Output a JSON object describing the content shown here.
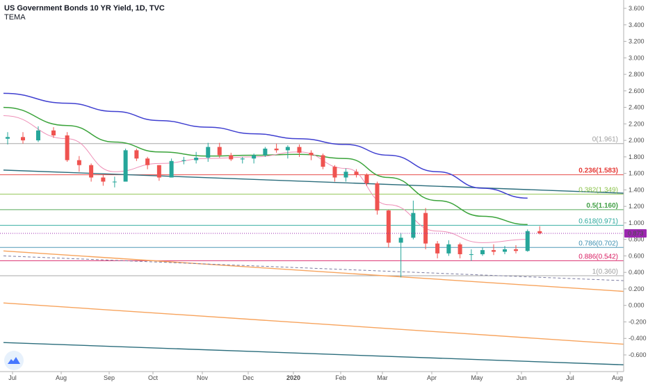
{
  "header": {
    "title": "US Government Bonds 10 YR Yield, 1D, TVC",
    "indicator": "TEMA"
  },
  "colors": {
    "candle_up": "#26a69a",
    "candle_down": "#ef5350",
    "price_badge": "#9c27b0",
    "axis_line": "#b0b0b0",
    "ema_slow": "#3f3fd0",
    "ema_mid": "#3aa33a",
    "ema_fast": "#ee8fb7",
    "trend_dark": "#2b6d7c",
    "trend_orange": "#f7a35c"
  },
  "chart_data": {
    "type": "candlestick",
    "symbol": "US Government Bonds 10 YR Yield",
    "interval": "1D",
    "source": "TVC",
    "indicator": "TEMA",
    "x_tick_labels": [
      "Jul",
      "Aug",
      "Sep",
      "Oct",
      "Nov",
      "Dec",
      "2020",
      "Feb",
      "Mar",
      "Apr",
      "May",
      "Jun",
      "Jul",
      "Aug"
    ],
    "y_tick_labels": [
      "3.600",
      "3.400",
      "3.200",
      "3.000",
      "2.800",
      "2.600",
      "2.400",
      "2.200",
      "2.000",
      "1.800",
      "1.600",
      "1.400",
      "1.200",
      "1.000",
      "0.800",
      "0.600",
      "0.400",
      "0.200",
      "0.000",
      "-0.200",
      "-0.400",
      "-0.600"
    ],
    "ylim": [
      -0.7,
      3.7
    ],
    "last_price": {
      "value": 0.873,
      "label": "0.873"
    },
    "fib_levels": [
      {
        "ratio": "0",
        "value": 1.961,
        "label": "0(1.961)",
        "color": "#9e9e9e",
        "bold": false
      },
      {
        "ratio": "0.236",
        "value": 1.583,
        "label": "0.236(1.583)",
        "color": "#e53935",
        "bold": true
      },
      {
        "ratio": "0.382",
        "value": 1.349,
        "label": "0.382(1.349)",
        "color": "#8bc34a",
        "bold": false
      },
      {
        "ratio": "0.5",
        "value": 1.16,
        "label": "0.5(1.160)",
        "color": "#43a047",
        "bold": true
      },
      {
        "ratio": "0.618",
        "value": 0.971,
        "label": "0.618(0.971)",
        "color": "#26a69a",
        "bold": false
      },
      {
        "ratio": "0.786",
        "value": 0.702,
        "label": "0.786(0.702)",
        "color": "#3d8fb0",
        "bold": false
      },
      {
        "ratio": "0.886",
        "value": 0.542,
        "label": "0.886(0.542)",
        "color": "#d81b60",
        "bold": false
      },
      {
        "ratio": "1",
        "value": 0.36,
        "label": "1(0.360)",
        "color": "#9e9e9e",
        "bold": false
      }
    ],
    "ohlc_weekly": [
      {
        "week": "Jul-1",
        "open": 2.02,
        "high": 2.1,
        "low": 1.95,
        "close": 2.04
      },
      {
        "week": "Jul-2",
        "open": 2.04,
        "high": 2.1,
        "low": 1.96,
        "close": 2.0
      },
      {
        "week": "Jul-3",
        "open": 2.0,
        "high": 2.17,
        "low": 1.98,
        "close": 2.12
      },
      {
        "week": "Jul-4",
        "open": 2.12,
        "high": 2.16,
        "low": 2.03,
        "close": 2.06
      },
      {
        "week": "Aug-1",
        "open": 2.06,
        "high": 2.1,
        "low": 1.74,
        "close": 1.76
      },
      {
        "week": "Aug-2",
        "open": 1.76,
        "high": 1.81,
        "low": 1.62,
        "close": 1.7
      },
      {
        "week": "Aug-3",
        "open": 1.7,
        "high": 1.72,
        "low": 1.5,
        "close": 1.55
      },
      {
        "week": "Aug-4",
        "open": 1.55,
        "high": 1.58,
        "low": 1.45,
        "close": 1.5
      },
      {
        "week": "Sep-1",
        "open": 1.5,
        "high": 1.56,
        "low": 1.43,
        "close": 1.5
      },
      {
        "week": "Sep-2",
        "open": 1.5,
        "high": 1.9,
        "low": 1.5,
        "close": 1.88
      },
      {
        "week": "Sep-3",
        "open": 1.88,
        "high": 1.9,
        "low": 1.75,
        "close": 1.78
      },
      {
        "week": "Sep-4",
        "open": 1.78,
        "high": 1.8,
        "low": 1.65,
        "close": 1.7
      },
      {
        "week": "Oct-1",
        "open": 1.7,
        "high": 1.7,
        "low": 1.51,
        "close": 1.55
      },
      {
        "week": "Oct-2",
        "open": 1.55,
        "high": 1.78,
        "low": 1.55,
        "close": 1.75
      },
      {
        "week": "Oct-3",
        "open": 1.75,
        "high": 1.8,
        "low": 1.71,
        "close": 1.76
      },
      {
        "week": "Oct-4",
        "open": 1.76,
        "high": 1.86,
        "low": 1.72,
        "close": 1.79
      },
      {
        "week": "Nov-1",
        "open": 1.79,
        "high": 1.97,
        "low": 1.74,
        "close": 1.92
      },
      {
        "week": "Nov-2",
        "open": 1.92,
        "high": 1.97,
        "low": 1.79,
        "close": 1.82
      },
      {
        "week": "Nov-3",
        "open": 1.82,
        "high": 1.85,
        "low": 1.75,
        "close": 1.77
      },
      {
        "week": "Nov-4",
        "open": 1.77,
        "high": 1.8,
        "low": 1.72,
        "close": 1.78
      },
      {
        "week": "Dec-1",
        "open": 1.78,
        "high": 1.84,
        "low": 1.72,
        "close": 1.82
      },
      {
        "week": "Dec-2",
        "open": 1.82,
        "high": 1.92,
        "low": 1.8,
        "close": 1.9
      },
      {
        "week": "Dec-3",
        "open": 1.9,
        "high": 1.96,
        "low": 1.85,
        "close": 1.88
      },
      {
        "week": "Dec-4",
        "open": 1.88,
        "high": 1.94,
        "low": 1.78,
        "close": 1.92
      },
      {
        "week": "Jan-1",
        "open": 1.92,
        "high": 1.95,
        "low": 1.8,
        "close": 1.85
      },
      {
        "week": "Jan-2",
        "open": 1.85,
        "high": 1.88,
        "low": 1.76,
        "close": 1.82
      },
      {
        "week": "Jan-3",
        "open": 1.82,
        "high": 1.84,
        "low": 1.65,
        "close": 1.68
      },
      {
        "week": "Jan-4",
        "open": 1.68,
        "high": 1.7,
        "low": 1.5,
        "close": 1.55
      },
      {
        "week": "Feb-1",
        "open": 1.55,
        "high": 1.66,
        "low": 1.5,
        "close": 1.62
      },
      {
        "week": "Feb-2",
        "open": 1.62,
        "high": 1.65,
        "low": 1.55,
        "close": 1.58
      },
      {
        "week": "Feb-3",
        "open": 1.58,
        "high": 1.6,
        "low": 1.45,
        "close": 1.48
      },
      {
        "week": "Feb-4",
        "open": 1.48,
        "high": 1.5,
        "low": 1.1,
        "close": 1.15
      },
      {
        "week": "Mar-1",
        "open": 1.15,
        "high": 1.16,
        "low": 0.7,
        "close": 0.76
      },
      {
        "week": "Mar-2",
        "open": 0.76,
        "high": 0.88,
        "low": 0.34,
        "close": 0.82
      },
      {
        "week": "Mar-3",
        "open": 0.82,
        "high": 1.27,
        "low": 0.8,
        "close": 1.12
      },
      {
        "week": "Mar-4",
        "open": 1.12,
        "high": 1.18,
        "low": 0.68,
        "close": 0.75
      },
      {
        "week": "Apr-1",
        "open": 0.75,
        "high": 0.78,
        "low": 0.57,
        "close": 0.63
      },
      {
        "week": "Apr-2",
        "open": 0.63,
        "high": 0.79,
        "low": 0.6,
        "close": 0.74
      },
      {
        "week": "Apr-3",
        "open": 0.74,
        "high": 0.76,
        "low": 0.57,
        "close": 0.62
      },
      {
        "week": "Apr-4",
        "open": 0.62,
        "high": 0.68,
        "low": 0.54,
        "close": 0.62
      },
      {
        "week": "May-1",
        "open": 0.62,
        "high": 0.7,
        "low": 0.6,
        "close": 0.67
      },
      {
        "week": "May-2",
        "open": 0.67,
        "high": 0.74,
        "low": 0.61,
        "close": 0.65
      },
      {
        "week": "May-3",
        "open": 0.65,
        "high": 0.72,
        "low": 0.62,
        "close": 0.68
      },
      {
        "week": "May-4",
        "open": 0.68,
        "high": 0.73,
        "low": 0.63,
        "close": 0.66
      },
      {
        "week": "Jun-1",
        "open": 0.66,
        "high": 0.92,
        "low": 0.65,
        "close": 0.9
      },
      {
        "week": "Jun-2",
        "open": 0.9,
        "high": 0.96,
        "low": 0.86,
        "close": 0.873
      }
    ],
    "moving_averages": [
      {
        "color": "#3f3fd0",
        "points": [
          [
            "Jul-1",
            2.57
          ],
          [
            "Aug-1",
            2.45
          ],
          [
            "Sep-1",
            2.35
          ],
          [
            "Oct-1",
            2.24
          ],
          [
            "Nov-1",
            2.16
          ],
          [
            "Dec-1",
            2.08
          ],
          [
            "Jan-1",
            2.02
          ],
          [
            "Feb-1",
            1.95
          ],
          [
            "Mar-1",
            1.82
          ],
          [
            "Apr-1",
            1.62
          ],
          [
            "May-1",
            1.42
          ],
          [
            "Jun-1",
            1.3
          ]
        ]
      },
      {
        "color": "#3aa33a",
        "points": [
          [
            "Jul-1",
            2.4
          ],
          [
            "Aug-1",
            2.18
          ],
          [
            "Sep-1",
            1.98
          ],
          [
            "Oct-1",
            1.86
          ],
          [
            "Nov-1",
            1.81
          ],
          [
            "Dec-1",
            1.82
          ],
          [
            "Jan-1",
            1.83
          ],
          [
            "Feb-1",
            1.78
          ],
          [
            "Mar-1",
            1.55
          ],
          [
            "Apr-1",
            1.27
          ],
          [
            "May-1",
            1.08
          ],
          [
            "Jun-1",
            0.98
          ]
        ]
      },
      {
        "color": "#ee8fb7",
        "points": [
          [
            "Jul-1",
            2.3
          ],
          [
            "Aug-1",
            2.02
          ],
          [
            "Sep-1",
            1.62
          ],
          [
            "Oct-1",
            1.72
          ],
          [
            "Nov-1",
            1.78
          ],
          [
            "Dec-1",
            1.8
          ],
          [
            "Jan-1",
            1.86
          ],
          [
            "Feb-1",
            1.66
          ],
          [
            "Mar-1",
            1.22
          ],
          [
            "Apr-1",
            0.9
          ],
          [
            "May-1",
            0.76
          ],
          [
            "Jun-1",
            0.8
          ]
        ]
      }
    ],
    "trend_lines": [
      {
        "color": "#2b6d7c",
        "style": "solid",
        "from": [
          "Jul-1",
          1.64
        ],
        "to": [
          "Aug",
          1.36
        ]
      },
      {
        "color": "#f7a35c",
        "style": "solid",
        "from": [
          "Jul-1",
          0.66
        ],
        "to": [
          "Aug",
          0.17
        ]
      },
      {
        "color": "#f7a35c",
        "style": "solid",
        "from": [
          "Jul-1",
          0.03
        ],
        "to": [
          "Aug",
          -0.47
        ]
      },
      {
        "color": "#2b6d7c",
        "style": "solid",
        "from": [
          "Jul-1",
          -0.45
        ],
        "to": [
          "Aug",
          -0.72
        ]
      },
      {
        "color": "#7a7aa0",
        "style": "dashed",
        "from": [
          "Jul-1",
          0.6
        ],
        "to": [
          "Aug",
          0.3
        ]
      }
    ]
  }
}
